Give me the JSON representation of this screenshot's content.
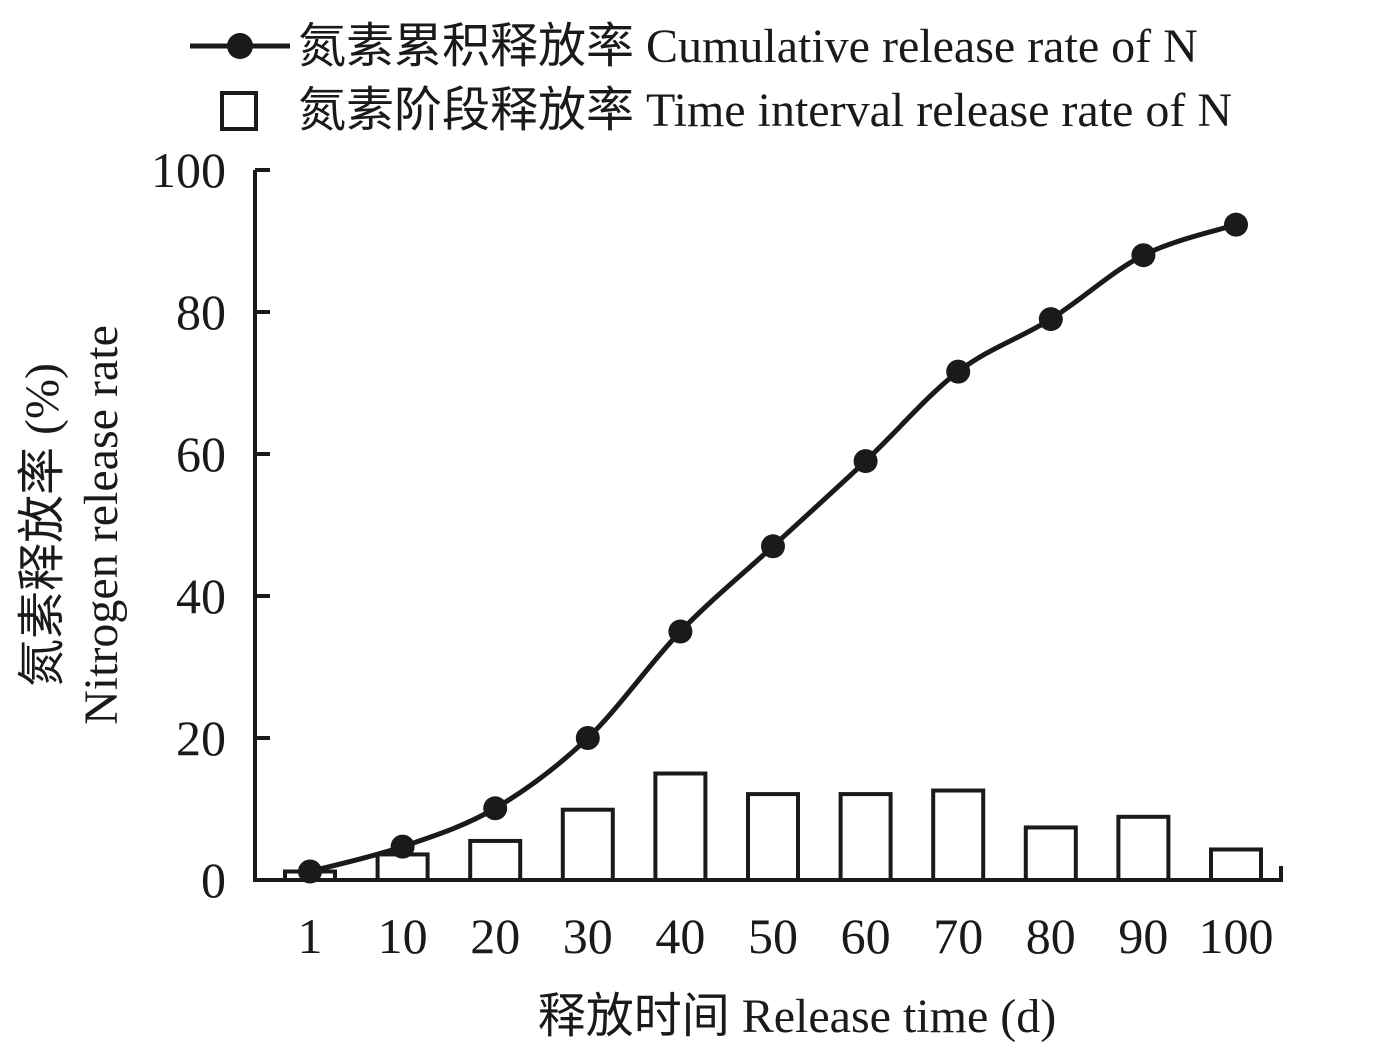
{
  "chart_data": {
    "type": "bar",
    "categories": [
      "1",
      "10",
      "20",
      "30",
      "40",
      "50",
      "60",
      "70",
      "80",
      "90",
      "100"
    ],
    "series": [
      {
        "name": "氮素累积释放率 Cumulative release rate of N",
        "type": "line",
        "values": [
          1.2,
          4.7,
          10.1,
          20.0,
          35.0,
          47.0,
          59.0,
          71.6,
          79.0,
          88.0,
          92.3
        ]
      },
      {
        "name": "氮素阶段释放率 Time interval release rate of N",
        "type": "bar",
        "values": [
          1.2,
          3.6,
          5.5,
          9.9,
          15.0,
          12.1,
          12.1,
          12.6,
          7.4,
          8.9,
          4.3
        ]
      }
    ],
    "xlabel": "释放时间 Release time (d)",
    "ylabel_line1": "氮素释放率 (%)",
    "ylabel_line2": "Nitrogen release rate",
    "ylim": [
      0,
      100
    ],
    "yticks": [
      "0",
      "20",
      "40",
      "60",
      "80",
      "100"
    ],
    "legend_position": "top",
    "grid": false,
    "colors": {
      "line": "#1a1a1a",
      "bar_fill": "#ffffff",
      "bar_stroke": "#1a1a1a"
    }
  }
}
